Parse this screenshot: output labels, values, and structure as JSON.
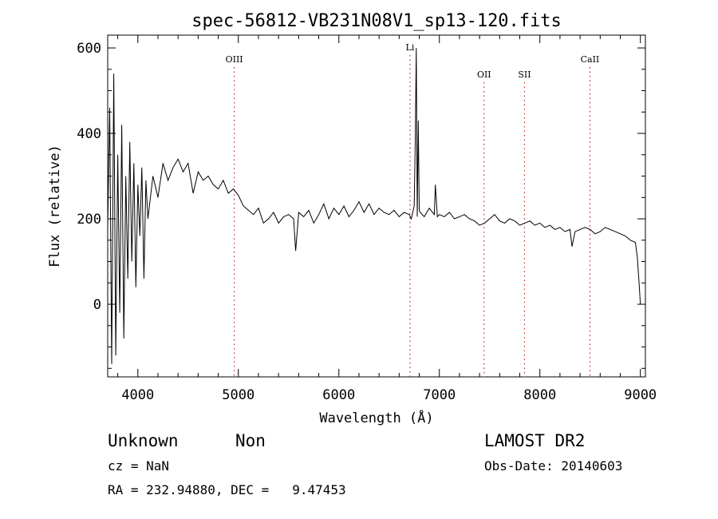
{
  "chart_data": {
    "type": "line",
    "title": "spec-56812-VB231N08V1_sp13-120.fits",
    "xlabel": "Wavelength (Å)",
    "ylabel": "Flux (relative)",
    "xlim": [
      3700,
      9050
    ],
    "ylim": [
      -170,
      630
    ],
    "xticks": [
      4000,
      5000,
      6000,
      7000,
      8000,
      9000
    ],
    "yticks": [
      0,
      200,
      400,
      600
    ],
    "grid": false,
    "series": [
      {
        "x": [
          3700,
          3720,
          3740,
          3760,
          3780,
          3800,
          3820,
          3840,
          3860,
          3880,
          3900,
          3920,
          3940,
          3960,
          3980,
          4000,
          4020,
          4040,
          4060,
          4080,
          4100,
          4150,
          4200,
          4250,
          4300,
          4350,
          4400,
          4450,
          4500,
          4550,
          4600,
          4650,
          4700,
          4750,
          4800,
          4850,
          4900,
          4950,
          5000,
          5050,
          5100,
          5150,
          5200,
          5250,
          5300,
          5350,
          5400,
          5450,
          5500,
          5550,
          5570,
          5600,
          5650,
          5700,
          5750,
          5800,
          5850,
          5900,
          5950,
          6000,
          6050,
          6100,
          6150,
          6200,
          6250,
          6300,
          6350,
          6400,
          6450,
          6500,
          6550,
          6600,
          6650,
          6700,
          6720,
          6750,
          6760,
          6770,
          6780,
          6790,
          6800,
          6810,
          6850,
          6900,
          6950,
          6960,
          6980,
          7000,
          7050,
          7100,
          7150,
          7200,
          7250,
          7300,
          7350,
          7400,
          7450,
          7500,
          7550,
          7600,
          7650,
          7700,
          7750,
          7800,
          7850,
          7900,
          7950,
          8000,
          8050,
          8100,
          8150,
          8200,
          8250,
          8300,
          8320,
          8350,
          8400,
          8450,
          8500,
          8550,
          8600,
          8650,
          8700,
          8750,
          8800,
          8850,
          8900,
          8950,
          8970,
          8990,
          9000
        ],
        "y": [
          180,
          460,
          -140,
          540,
          -120,
          350,
          -20,
          420,
          -80,
          300,
          60,
          380,
          100,
          330,
          40,
          280,
          160,
          320,
          60,
          290,
          200,
          300,
          250,
          330,
          290,
          320,
          340,
          310,
          330,
          260,
          310,
          290,
          300,
          280,
          270,
          290,
          260,
          270,
          255,
          230,
          220,
          210,
          225,
          190,
          200,
          215,
          190,
          205,
          210,
          200,
          125,
          215,
          205,
          220,
          190,
          210,
          235,
          200,
          225,
          210,
          230,
          205,
          220,
          240,
          215,
          235,
          210,
          225,
          215,
          210,
          220,
          205,
          215,
          210,
          200,
          230,
          380,
          600,
          205,
          430,
          220,
          215,
          205,
          225,
          210,
          280,
          205,
          210,
          205,
          215,
          200,
          205,
          210,
          200,
          195,
          185,
          190,
          200,
          210,
          195,
          190,
          200,
          195,
          185,
          190,
          195,
          185,
          190,
          180,
          185,
          175,
          180,
          170,
          175,
          135,
          170,
          175,
          180,
          175,
          165,
          170,
          180,
          175,
          170,
          165,
          160,
          150,
          145,
          110,
          40,
          0
        ]
      }
    ],
    "annotations": [
      {
        "label": "OIII",
        "x": 4959
      },
      {
        "label": "Li",
        "x": 6708
      },
      {
        "label": "OII",
        "x": 7445
      },
      {
        "label": "SII",
        "x": 7847
      },
      {
        "label": "CaII",
        "x": 8498
      }
    ],
    "line_color": "#000000",
    "annotation_color": "#cc2222"
  },
  "info": {
    "object_class": "Unknown",
    "subclass": "Non",
    "cz": "cz = NaN",
    "coords": "RA = 232.94880, DEC =   9.47453",
    "survey": "LAMOST DR2",
    "obs_date": "Obs-Date: 20140603"
  }
}
